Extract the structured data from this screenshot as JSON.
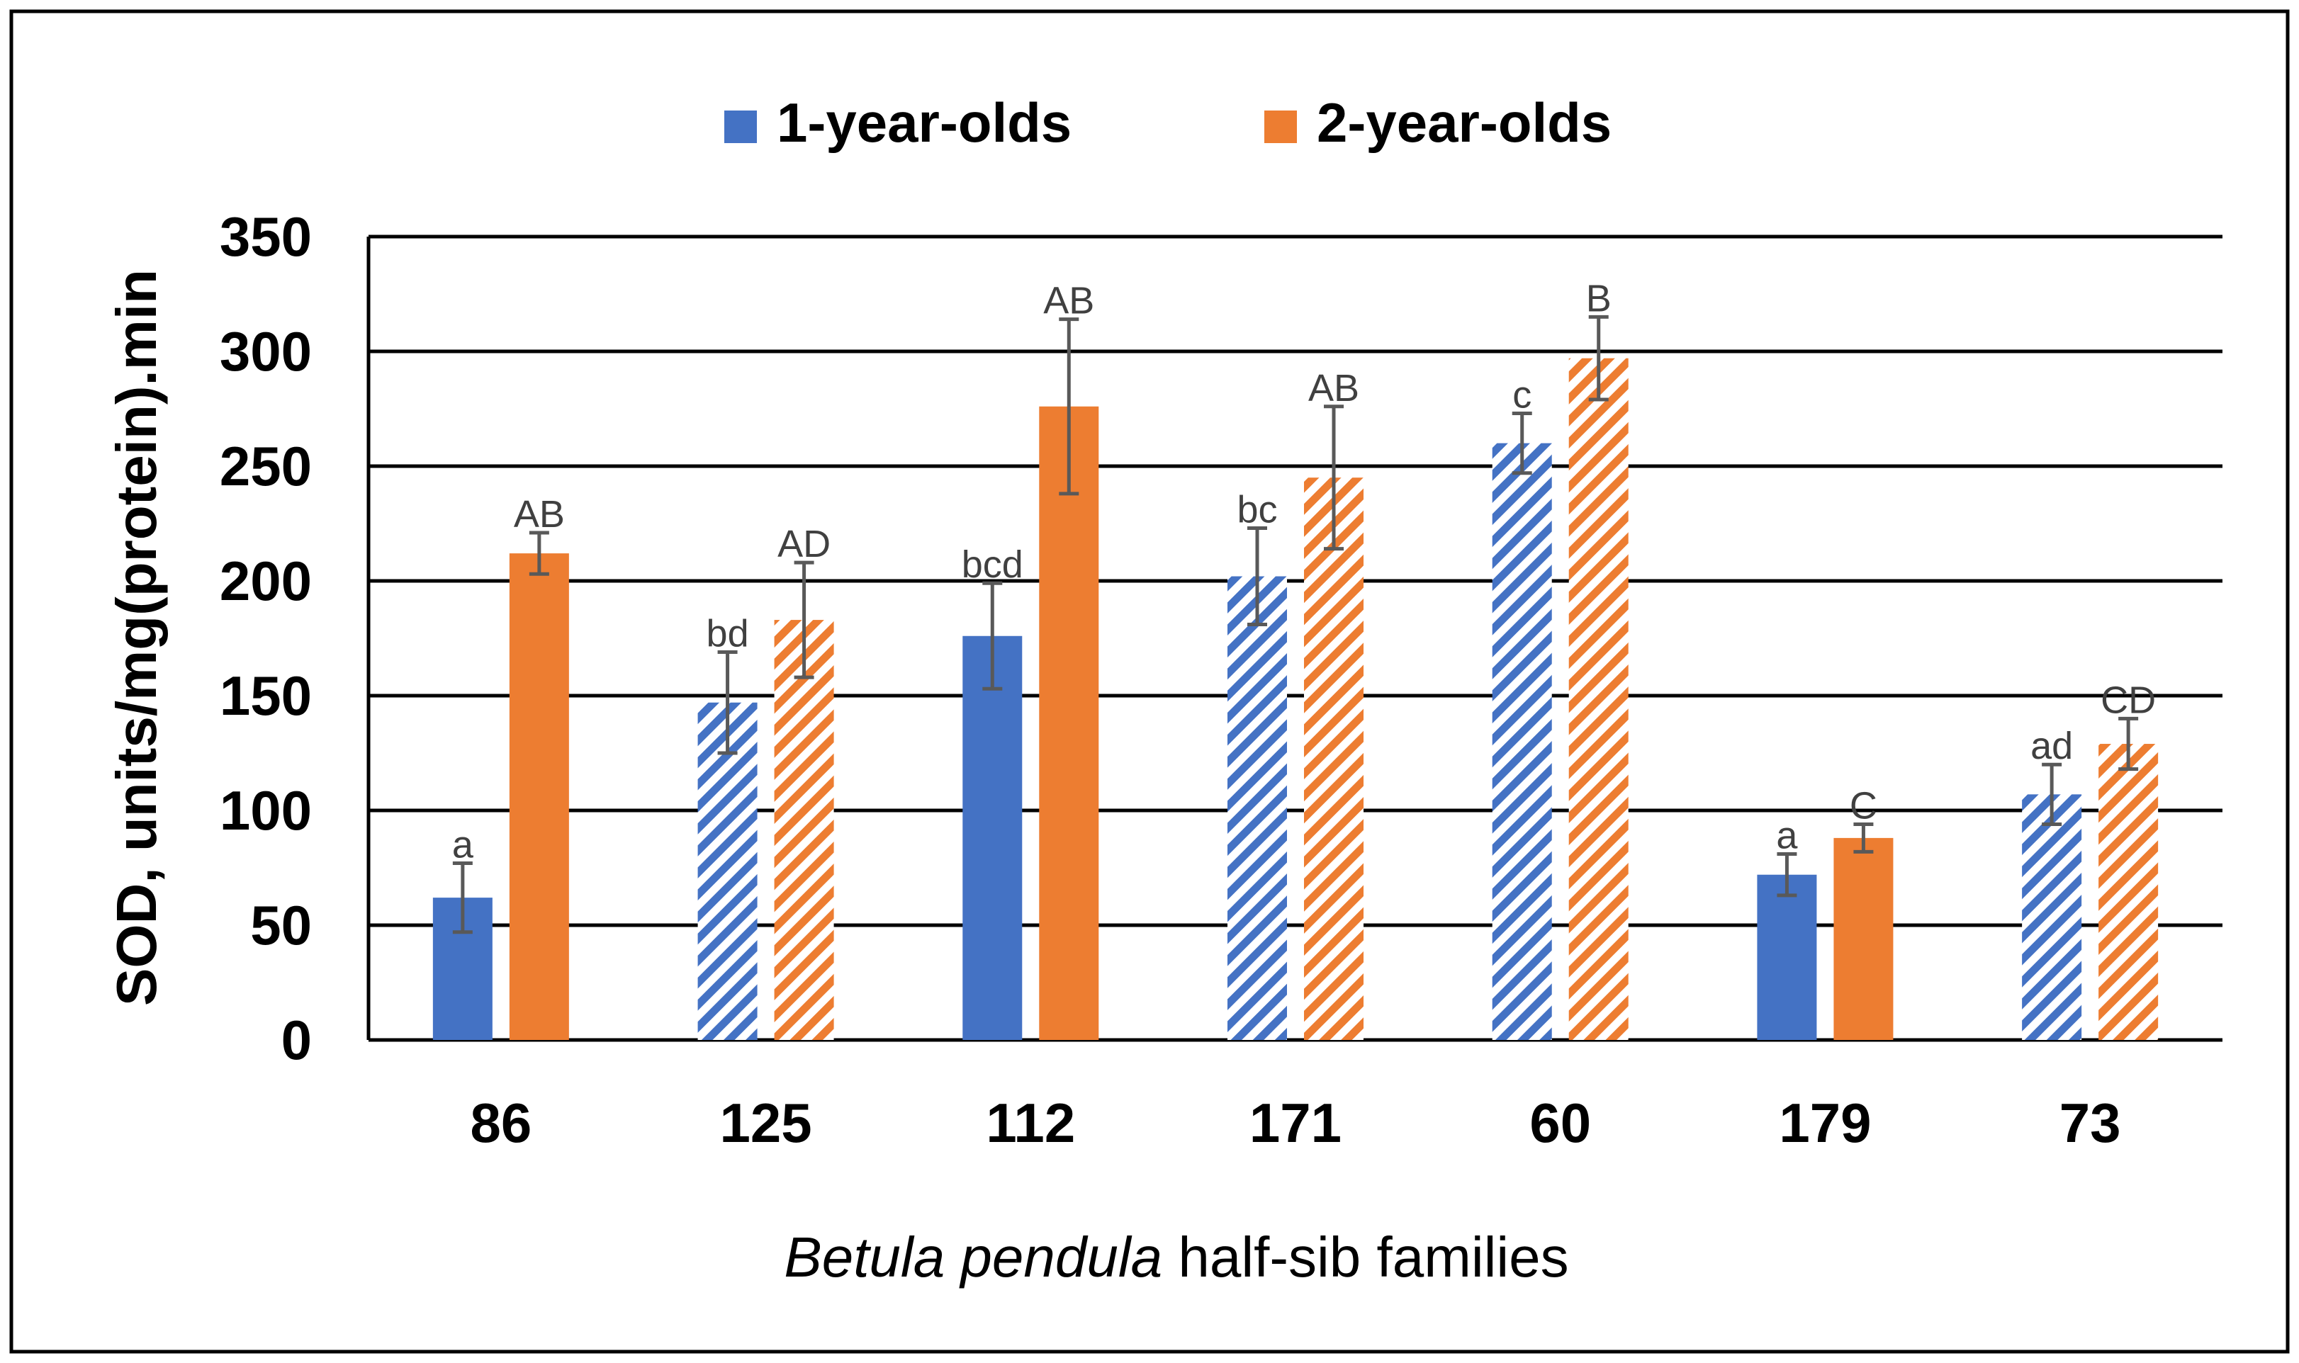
{
  "chart_data": {
    "type": "bar",
    "title": "",
    "xlabel_italic": "Betula pendula",
    "xlabel_rest": " half-sib families",
    "ylabel": "SOD, units/mg(protein).min",
    "ylim": [
      0,
      350
    ],
    "yticks": [
      0,
      50,
      100,
      150,
      200,
      250,
      300,
      350
    ],
    "grid": true,
    "legend_position": "top-center",
    "categories": [
      "86",
      "125",
      "112",
      "171",
      "60",
      "179",
      "73"
    ],
    "series": [
      {
        "name": "1-year-olds",
        "color": "#4472C4",
        "values": [
          62,
          147,
          176,
          202,
          260,
          72,
          107
        ],
        "errors": [
          15,
          22,
          23,
          21,
          13,
          9,
          13
        ],
        "labels": [
          "a",
          "bd",
          "bcd",
          "bc",
          "c",
          "a",
          "ad"
        ],
        "hatched": [
          false,
          true,
          false,
          true,
          true,
          false,
          true
        ]
      },
      {
        "name": "2-year-olds",
        "color": "#ED7D31",
        "values": [
          212,
          183,
          276,
          245,
          297,
          88,
          129
        ],
        "errors": [
          9,
          25,
          38,
          31,
          18,
          6,
          11
        ],
        "labels": [
          "AB",
          "AD",
          "AB",
          "AB",
          "B",
          "C",
          "CD"
        ],
        "hatched": [
          false,
          true,
          false,
          true,
          true,
          false,
          true
        ]
      }
    ]
  }
}
